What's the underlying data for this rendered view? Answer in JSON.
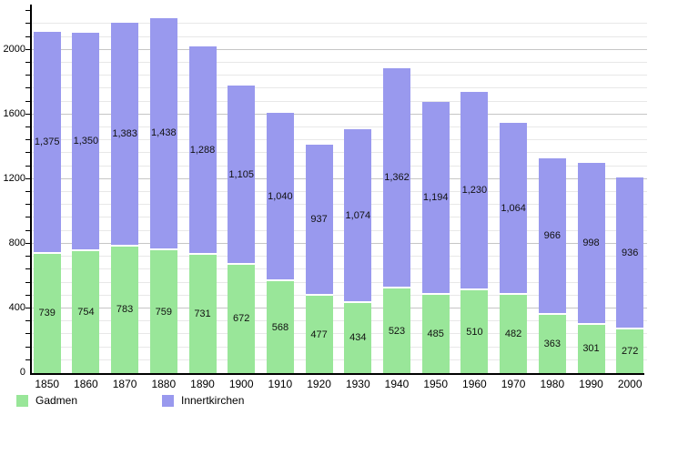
{
  "chart_data": {
    "type": "bar",
    "stacked": true,
    "title": "",
    "xlabel": "",
    "ylabel": "",
    "categories": [
      "1850",
      "1860",
      "1870",
      "1880",
      "1890",
      "1900",
      "1910",
      "1920",
      "1930",
      "1940",
      "1950",
      "1960",
      "1970",
      "1980",
      "1990",
      "2000"
    ],
    "series": [
      {
        "name": "Gadmen",
        "color": "#99E699",
        "values": [
          739,
          754,
          783,
          759,
          731,
          672,
          568,
          477,
          434,
          523,
          485,
          510,
          482,
          363,
          301,
          272
        ]
      },
      {
        "name": "Innertkirchen",
        "color": "#9999EE",
        "values": [
          1375,
          1350,
          1383,
          1438,
          1288,
          1105,
          1040,
          937,
          1074,
          1362,
          1194,
          1230,
          1064,
          966,
          998,
          936
        ]
      }
    ],
    "ylim": [
      0,
      2280
    ],
    "y_ticks": [
      {
        "value": 0,
        "label": "0"
      },
      {
        "value": 400,
        "label": "400"
      },
      {
        "value": 800,
        "label": "800"
      },
      {
        "value": 1200,
        "label": "1200"
      },
      {
        "value": 1600,
        "label": "1600"
      },
      {
        "value": 2000,
        "label": "2000"
      }
    ],
    "y_minor_step": 80,
    "grid": true,
    "legend_position": "bottom-left"
  },
  "legend": {
    "items": [
      {
        "label": "Gadmen",
        "color": "#99E699"
      },
      {
        "label": "Innertkirchen",
        "color": "#9999EE"
      }
    ]
  },
  "styles": {
    "background": "#ffffff",
    "minor_grid_color": "#e8e8e8",
    "major_grid_color": "#c6c6c6",
    "axis_color": "#000000",
    "label_color": "#111111"
  }
}
